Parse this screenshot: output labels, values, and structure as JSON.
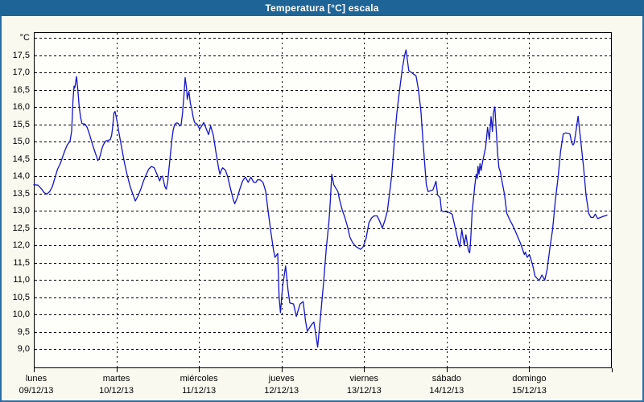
{
  "window": {
    "title": "Temperatura [°C] escala"
  },
  "colors": {
    "title_bar": "#1e6496",
    "outer_border": "#2b6da8",
    "background": "#f9f9ef",
    "plot_background": "#fefefa",
    "line": "#1414c8",
    "grid": "#000000",
    "text": "#000000"
  },
  "chart_data": {
    "type": "line",
    "title": "Temperatura [°C] escala",
    "unit_label": "°C",
    "grid": true,
    "legend": "none",
    "y_axis": {
      "min": 9.0,
      "max": 18.0,
      "step": 0.5,
      "decimal_separator": ",",
      "tick_labels": [
        "17,5",
        "17,0",
        "16,5",
        "16,0",
        "15,5",
        "15,0",
        "14,5",
        "14,0",
        "13,5",
        "13,0",
        "12,5",
        "12,0",
        "11,5",
        "11,0",
        "10,5",
        "10,0",
        "9,5",
        "9,0"
      ]
    },
    "x_axis": {
      "hours_total": 168,
      "days": [
        {
          "name": "lunes",
          "date": "09/12/13"
        },
        {
          "name": "martes",
          "date": "10/12/13"
        },
        {
          "name": "miércoles",
          "date": "11/12/13"
        },
        {
          "name": "jueves",
          "date": "12/12/13"
        },
        {
          "name": "viernes",
          "date": "13/12/13"
        },
        {
          "name": "sábado",
          "date": "14/12/13"
        },
        {
          "name": "domingo",
          "date": "15/12/13"
        }
      ]
    },
    "series": [
      {
        "name": "Temperatura",
        "points": [
          [
            0,
            13.75
          ],
          [
            1.2,
            13.74
          ],
          [
            2.3,
            13.62
          ],
          [
            3.0,
            13.52
          ],
          [
            3.8,
            13.48
          ],
          [
            4.6,
            13.55
          ],
          [
            5.4,
            13.7
          ],
          [
            6.2,
            13.97
          ],
          [
            6.9,
            14.2
          ],
          [
            7.7,
            14.36
          ],
          [
            8.9,
            14.7
          ],
          [
            9.7,
            14.9
          ],
          [
            10.5,
            15.0
          ],
          [
            11.0,
            15.3
          ],
          [
            11.4,
            16.2
          ],
          [
            11.7,
            16.6
          ],
          [
            11.9,
            16.55
          ],
          [
            12.4,
            16.88
          ],
          [
            12.8,
            16.5
          ],
          [
            13.2,
            16.0
          ],
          [
            13.6,
            15.7
          ],
          [
            14.0,
            15.52
          ],
          [
            14.9,
            15.5
          ],
          [
            15.5,
            15.41
          ],
          [
            15.9,
            15.29
          ],
          [
            16.3,
            15.17
          ],
          [
            16.8,
            15.0
          ],
          [
            17.1,
            14.9
          ],
          [
            17.5,
            14.78
          ],
          [
            17.9,
            14.66
          ],
          [
            18.3,
            14.55
          ],
          [
            18.6,
            14.45
          ],
          [
            19.0,
            14.5
          ],
          [
            19.4,
            14.63
          ],
          [
            19.8,
            14.79
          ],
          [
            20.2,
            14.9
          ],
          [
            20.6,
            14.97
          ],
          [
            21.0,
            15.02
          ],
          [
            21.8,
            15.04
          ],
          [
            22.2,
            15.05
          ],
          [
            22.6,
            15.17
          ],
          [
            22.9,
            15.4
          ],
          [
            23.3,
            15.83
          ],
          [
            23.6,
            15.87
          ],
          [
            24.1,
            15.64
          ],
          [
            24.9,
            15.17
          ],
          [
            25.7,
            14.74
          ],
          [
            26.4,
            14.36
          ],
          [
            27.2,
            14.01
          ],
          [
            28.0,
            13.7
          ],
          [
            28.8,
            13.47
          ],
          [
            29.5,
            13.28
          ],
          [
            30.3,
            13.43
          ],
          [
            31.1,
            13.62
          ],
          [
            31.9,
            13.86
          ],
          [
            32.7,
            14.05
          ],
          [
            33.4,
            14.2
          ],
          [
            34.2,
            14.28
          ],
          [
            35.0,
            14.24
          ],
          [
            35.8,
            14.05
          ],
          [
            36.6,
            13.86
          ],
          [
            37.0,
            13.97
          ],
          [
            37.4,
            14.0
          ],
          [
            38.1,
            13.7
          ],
          [
            38.5,
            13.62
          ],
          [
            38.9,
            13.82
          ],
          [
            39.3,
            14.24
          ],
          [
            39.7,
            14.63
          ],
          [
            40.1,
            15.02
          ],
          [
            40.5,
            15.33
          ],
          [
            40.9,
            15.48
          ],
          [
            41.2,
            15.52
          ],
          [
            41.6,
            15.54
          ],
          [
            42.0,
            15.52
          ],
          [
            42.4,
            15.45
          ],
          [
            42.8,
            15.48
          ],
          [
            43.2,
            15.79
          ],
          [
            43.6,
            16.26
          ],
          [
            44.0,
            16.85
          ],
          [
            44.4,
            16.53
          ],
          [
            44.6,
            16.22
          ],
          [
            44.8,
            16.33
          ],
          [
            45.1,
            16.45
          ],
          [
            45.5,
            16.1
          ],
          [
            45.9,
            15.94
          ],
          [
            46.3,
            15.71
          ],
          [
            46.7,
            15.56
          ],
          [
            47.1,
            15.52
          ],
          [
            47.5,
            15.5
          ],
          [
            48.0,
            15.4
          ],
          [
            48.2,
            15.36
          ],
          [
            48.8,
            15.45
          ],
          [
            49.4,
            15.55
          ],
          [
            50.2,
            15.35
          ],
          [
            50.8,
            15.2
          ],
          [
            51.4,
            15.45
          ],
          [
            52.2,
            15.17
          ],
          [
            52.9,
            14.71
          ],
          [
            53.7,
            14.24
          ],
          [
            54.1,
            14.05
          ],
          [
            54.5,
            14.17
          ],
          [
            54.9,
            14.24
          ],
          [
            55.7,
            14.17
          ],
          [
            56.4,
            13.97
          ],
          [
            57.2,
            13.62
          ],
          [
            58.0,
            13.31
          ],
          [
            58.4,
            13.2
          ],
          [
            59.2,
            13.39
          ],
          [
            60.0,
            13.66
          ],
          [
            60.7,
            13.86
          ],
          [
            61.5,
            13.97
          ],
          [
            62.3,
            13.82
          ],
          [
            63.1,
            13.97
          ],
          [
            63.9,
            13.82
          ],
          [
            64.6,
            13.82
          ],
          [
            65.0,
            13.89
          ],
          [
            65.8,
            13.89
          ],
          [
            66.6,
            13.82
          ],
          [
            67.0,
            13.7
          ],
          [
            67.4,
            13.55
          ],
          [
            68.1,
            13.0
          ],
          [
            68.9,
            12.38
          ],
          [
            69.7,
            11.84
          ],
          [
            70.1,
            11.65
          ],
          [
            70.9,
            11.76
          ],
          [
            71.3,
            10.5
          ],
          [
            71.7,
            10.05
          ],
          [
            72.3,
            10.8
          ],
          [
            73.2,
            11.4
          ],
          [
            73.9,
            10.7
          ],
          [
            74.4,
            10.33
          ],
          [
            75.5,
            10.3
          ],
          [
            76.3,
            9.94
          ],
          [
            77.4,
            10.3
          ],
          [
            78.3,
            10.37
          ],
          [
            79.0,
            9.8
          ],
          [
            79.5,
            9.51
          ],
          [
            80.7,
            9.7
          ],
          [
            81.4,
            9.78
          ],
          [
            82.0,
            9.4
          ],
          [
            82.5,
            9.05
          ],
          [
            83.3,
            9.9
          ],
          [
            84.2,
            10.9
          ],
          [
            85.0,
            11.9
          ],
          [
            85.8,
            12.7
          ],
          [
            86.2,
            13.3
          ],
          [
            86.6,
            14.05
          ],
          [
            87.2,
            13.75
          ],
          [
            87.9,
            13.63
          ],
          [
            88.4,
            13.55
          ],
          [
            88.8,
            13.35
          ],
          [
            89.6,
            13.04
          ],
          [
            90.4,
            12.8
          ],
          [
            91.1,
            12.57
          ],
          [
            91.9,
            12.22
          ],
          [
            92.7,
            12.07
          ],
          [
            93.5,
            11.97
          ],
          [
            94.3,
            11.92
          ],
          [
            95.0,
            11.88
          ],
          [
            95.7,
            11.95
          ],
          [
            96.6,
            12.2
          ],
          [
            97.4,
            12.65
          ],
          [
            98.2,
            12.79
          ],
          [
            98.9,
            12.85
          ],
          [
            99.8,
            12.85
          ],
          [
            100.5,
            12.7
          ],
          [
            101.3,
            12.5
          ],
          [
            102.0,
            12.7
          ],
          [
            102.8,
            13.0
          ],
          [
            103.4,
            13.5
          ],
          [
            104.0,
            14.0
          ],
          [
            104.4,
            14.5
          ],
          [
            104.8,
            15.0
          ],
          [
            105.5,
            15.8
          ],
          [
            106.2,
            16.4
          ],
          [
            107.1,
            17.1
          ],
          [
            107.8,
            17.5
          ],
          [
            108.2,
            17.65
          ],
          [
            109.0,
            17.05
          ],
          [
            109.7,
            17.0
          ],
          [
            110.4,
            16.95
          ],
          [
            111.1,
            16.9
          ],
          [
            111.8,
            16.5
          ],
          [
            112.5,
            15.9
          ],
          [
            113.2,
            14.9
          ],
          [
            114.1,
            13.75
          ],
          [
            114.6,
            13.55
          ],
          [
            115.3,
            13.58
          ],
          [
            116.0,
            13.6
          ],
          [
            116.9,
            13.85
          ],
          [
            117.4,
            13.45
          ],
          [
            118.1,
            13.38
          ],
          [
            118.5,
            13.0
          ],
          [
            119.2,
            12.97
          ],
          [
            119.9,
            12.97
          ],
          [
            120.7,
            12.95
          ],
          [
            121.6,
            12.9
          ],
          [
            122.5,
            12.5
          ],
          [
            123.5,
            12.05
          ],
          [
            123.8,
            11.95
          ],
          [
            124.4,
            12.45
          ],
          [
            125.1,
            12.0
          ],
          [
            125.6,
            12.3
          ],
          [
            126.3,
            11.85
          ],
          [
            126.7,
            11.78
          ],
          [
            127.0,
            12.2
          ],
          [
            127.4,
            12.96
          ],
          [
            127.8,
            13.35
          ],
          [
            128.2,
            13.74
          ],
          [
            128.6,
            14.05
          ],
          [
            128.9,
            13.93
          ],
          [
            129.1,
            14.28
          ],
          [
            129.4,
            14.05
          ],
          [
            129.7,
            14.36
          ],
          [
            130.0,
            14.16
          ],
          [
            130.5,
            14.44
          ],
          [
            131.3,
            14.82
          ],
          [
            131.9,
            15.41
          ],
          [
            132.4,
            15.06
          ],
          [
            132.9,
            15.72
          ],
          [
            133.3,
            15.29
          ],
          [
            133.6,
            15.83
          ],
          [
            134.0,
            16.0
          ],
          [
            134.8,
            14.67
          ],
          [
            135.2,
            14.24
          ],
          [
            135.6,
            14.13
          ],
          [
            136.0,
            13.9
          ],
          [
            136.8,
            13.47
          ],
          [
            137.5,
            12.92
          ],
          [
            138.3,
            12.74
          ],
          [
            139.1,
            12.59
          ],
          [
            139.9,
            12.42
          ],
          [
            141.4,
            12.07
          ],
          [
            142.6,
            11.73
          ],
          [
            142.9,
            11.8
          ],
          [
            143.4,
            11.65
          ],
          [
            144.0,
            11.73
          ],
          [
            144.2,
            11.69
          ],
          [
            145.0,
            11.42
          ],
          [
            145.7,
            11.1
          ],
          [
            146.9,
            10.98
          ],
          [
            147.7,
            11.14
          ],
          [
            148.5,
            10.99
          ],
          [
            149.2,
            11.3
          ],
          [
            150.0,
            11.92
          ],
          [
            150.8,
            12.46
          ],
          [
            151.6,
            13.3
          ],
          [
            152.4,
            13.97
          ],
          [
            153.1,
            14.7
          ],
          [
            153.9,
            15.22
          ],
          [
            154.6,
            15.25
          ],
          [
            155.8,
            15.22
          ],
          [
            156.3,
            14.98
          ],
          [
            156.7,
            14.9
          ],
          [
            157.0,
            14.94
          ],
          [
            157.4,
            15.17
          ],
          [
            158.2,
            15.73
          ],
          [
            159.0,
            15.0
          ],
          [
            159.8,
            14.24
          ],
          [
            160.5,
            13.47
          ],
          [
            161.3,
            12.92
          ],
          [
            161.9,
            12.81
          ],
          [
            162.6,
            12.8
          ],
          [
            163.2,
            12.9
          ],
          [
            163.9,
            12.77
          ],
          [
            164.6,
            12.8
          ],
          [
            165.4,
            12.83
          ],
          [
            166.0,
            12.85
          ],
          [
            166.6,
            12.87
          ]
        ]
      }
    ]
  }
}
